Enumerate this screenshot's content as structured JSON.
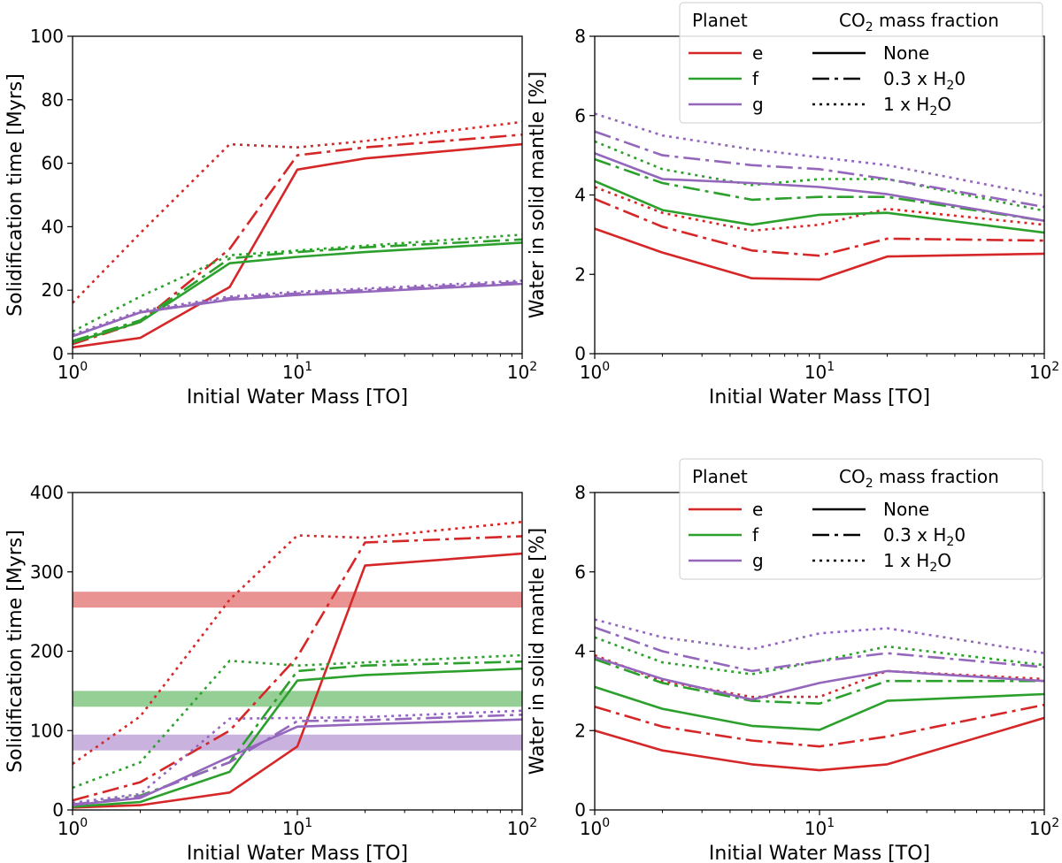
{
  "colors": {
    "e": "#d62728",
    "f": "#2ca02c",
    "g": "#9467bd"
  },
  "legend": {
    "planet_title": "Planet",
    "co2_title_pre": "CO",
    "co2_title_sub": "2",
    "co2_title_post": " mass fraction",
    "planets": [
      "e",
      "f",
      "g"
    ],
    "fractions": [
      {
        "style": "solid",
        "pre": "None",
        "sub": "",
        "post": ""
      },
      {
        "style": "dashdot",
        "pre": "0.3 x H",
        "sub": "2",
        "post": "0"
      },
      {
        "style": "dotted",
        "pre": "1 x H",
        "sub": "2",
        "post": "O"
      }
    ]
  },
  "chart_data": [
    {
      "id": "top-left",
      "type": "line",
      "xscale": "log",
      "xlabel": "Initial Water Mass [TO]",
      "ylabel": "Solidification time [Myrs]",
      "xlim": [
        1,
        100
      ],
      "ylim": [
        0,
        100
      ],
      "yticks": [
        0,
        20,
        40,
        60,
        80,
        100
      ],
      "x": [
        1,
        2,
        5,
        10,
        20,
        100
      ],
      "series": [
        {
          "name": "e none",
          "planet": "e",
          "style": "solid",
          "values": [
            2,
            5,
            21,
            58,
            61.5,
            66
          ]
        },
        {
          "name": "e 0.3xH2O",
          "planet": "e",
          "style": "dashdot",
          "values": [
            3,
            10,
            33,
            62.5,
            65,
            69
          ]
        },
        {
          "name": "e 1xH2O",
          "planet": "e",
          "style": "dotted",
          "values": [
            16,
            38,
            66,
            65,
            67,
            73
          ]
        },
        {
          "name": "f none",
          "planet": "f",
          "style": "solid",
          "values": [
            3.5,
            10,
            28.5,
            30.5,
            32,
            35
          ]
        },
        {
          "name": "f 0.3xH2O",
          "planet": "f",
          "style": "dashdot",
          "values": [
            4,
            10.5,
            30,
            32,
            33.5,
            36
          ]
        },
        {
          "name": "f 1xH2O",
          "planet": "f",
          "style": "dotted",
          "values": [
            7,
            18,
            31,
            32.5,
            34,
            37.5
          ]
        },
        {
          "name": "g none",
          "planet": "g",
          "style": "solid",
          "values": [
            5.5,
            13,
            17,
            18.5,
            19.5,
            22
          ]
        },
        {
          "name": "g 0.3xH2O",
          "planet": "g",
          "style": "dashdot",
          "values": [
            5.5,
            13,
            17.5,
            19,
            20,
            22.5
          ]
        },
        {
          "name": "g 1xH2O",
          "planet": "g",
          "style": "dotted",
          "values": [
            6,
            13.5,
            18,
            19.5,
            20.5,
            23
          ]
        }
      ]
    },
    {
      "id": "top-right",
      "type": "line",
      "xscale": "log",
      "xlabel": "Initial Water Mass [TO]",
      "ylabel": "Water in solid mantle [%]",
      "xlim": [
        1,
        100
      ],
      "ylim": [
        0,
        8
      ],
      "yticks": [
        0,
        2,
        4,
        6,
        8
      ],
      "x": [
        1,
        2,
        5,
        10,
        20,
        100
      ],
      "legend": "top-right",
      "series": [
        {
          "name": "e none",
          "planet": "e",
          "style": "solid",
          "values": [
            3.15,
            2.55,
            1.9,
            1.87,
            2.45,
            2.52
          ]
        },
        {
          "name": "e 0.3xH2O",
          "planet": "e",
          "style": "dashdot",
          "values": [
            3.9,
            3.2,
            2.6,
            2.47,
            2.9,
            2.85
          ]
        },
        {
          "name": "e 1xH2O",
          "planet": "e",
          "style": "dotted",
          "values": [
            4.2,
            3.55,
            3.1,
            3.25,
            3.65,
            3.25
          ]
        },
        {
          "name": "f none",
          "planet": "f",
          "style": "solid",
          "values": [
            4.35,
            3.62,
            3.25,
            3.5,
            3.55,
            3.05
          ]
        },
        {
          "name": "f 0.3xH2O",
          "planet": "f",
          "style": "dashdot",
          "values": [
            4.9,
            4.3,
            3.88,
            3.95,
            3.95,
            3.35
          ]
        },
        {
          "name": "f 1xH2O",
          "planet": "f",
          "style": "dotted",
          "values": [
            5.35,
            4.65,
            4.25,
            4.4,
            4.4,
            3.6
          ]
        },
        {
          "name": "g none",
          "planet": "g",
          "style": "solid",
          "values": [
            5.05,
            4.4,
            4.3,
            4.2,
            4.02,
            3.35
          ]
        },
        {
          "name": "g 0.3xH2O",
          "planet": "g",
          "style": "dashdot",
          "values": [
            5.6,
            5.0,
            4.75,
            4.65,
            4.4,
            3.7
          ]
        },
        {
          "name": "g 1xH2O",
          "planet": "g",
          "style": "dotted",
          "values": [
            6.05,
            5.5,
            5.15,
            4.95,
            4.75,
            3.98
          ]
        }
      ]
    },
    {
      "id": "bottom-left",
      "type": "line",
      "xscale": "log",
      "xlabel": "Initial Water Mass [TO]",
      "ylabel": "Solidification time [Myrs]",
      "xlim": [
        1,
        100
      ],
      "ylim": [
        0,
        400
      ],
      "yticks": [
        0,
        100,
        200,
        300,
        400
      ],
      "x": [
        1,
        2,
        5,
        10,
        20,
        100
      ],
      "bands": [
        {
          "planet": "e",
          "y0": 255,
          "y1": 275
        },
        {
          "planet": "f",
          "y0": 130,
          "y1": 150
        },
        {
          "planet": "g",
          "y0": 75,
          "y1": 95
        }
      ],
      "series": [
        {
          "name": "e none",
          "planet": "e",
          "style": "solid",
          "values": [
            3,
            6,
            22,
            80,
            308,
            323
          ]
        },
        {
          "name": "e 0.3xH2O",
          "planet": "e",
          "style": "dashdot",
          "values": [
            12,
            35,
            100,
            193,
            337,
            345
          ]
        },
        {
          "name": "e 1xH2O",
          "planet": "e",
          "style": "dotted",
          "values": [
            58,
            118,
            265,
            346,
            343,
            363
          ]
        },
        {
          "name": "f none",
          "planet": "f",
          "style": "solid",
          "values": [
            4,
            10,
            48,
            163,
            170,
            178
          ]
        },
        {
          "name": "f 0.3xH2O",
          "planet": "f",
          "style": "dashdot",
          "values": [
            6,
            18,
            60,
            175,
            182,
            187
          ]
        },
        {
          "name": "f 1xH2O",
          "planet": "f",
          "style": "dotted",
          "values": [
            28,
            60,
            188,
            182,
            186,
            195
          ]
        },
        {
          "name": "g none",
          "planet": "g",
          "style": "solid",
          "values": [
            6,
            15,
            67,
            105,
            108,
            114
          ]
        },
        {
          "name": "g 0.3xH2O",
          "planet": "g",
          "style": "dashdot",
          "values": [
            7,
            17,
            60,
            112,
            113,
            120
          ]
        },
        {
          "name": "g 1xH2O",
          "planet": "g",
          "style": "dotted",
          "values": [
            9,
            20,
            115,
            116,
            117,
            125
          ]
        }
      ]
    },
    {
      "id": "bottom-right",
      "type": "line",
      "xscale": "log",
      "xlabel": "Initial Water Mass [TO]",
      "ylabel": "Water in solid mantle [%]",
      "xlim": [
        1,
        100
      ],
      "ylim": [
        0,
        8
      ],
      "yticks": [
        0,
        2,
        4,
        6,
        8
      ],
      "x": [
        1,
        2,
        5,
        10,
        20,
        100
      ],
      "legend": "top-right",
      "series": [
        {
          "name": "e none",
          "planet": "e",
          "style": "solid",
          "values": [
            2.0,
            1.5,
            1.15,
            1.0,
            1.15,
            2.32
          ]
        },
        {
          "name": "e 0.3xH2O",
          "planet": "e",
          "style": "dashdot",
          "values": [
            2.6,
            2.1,
            1.75,
            1.6,
            1.85,
            2.65
          ]
        },
        {
          "name": "e 1xH2O",
          "planet": "e",
          "style": "dotted",
          "values": [
            3.9,
            3.25,
            2.85,
            2.85,
            3.5,
            3.3
          ]
        },
        {
          "name": "f none",
          "planet": "f",
          "style": "solid",
          "values": [
            3.1,
            2.55,
            2.12,
            2.02,
            2.75,
            2.92
          ]
        },
        {
          "name": "f 0.3xH2O",
          "planet": "f",
          "style": "dashdot",
          "values": [
            3.8,
            3.2,
            2.75,
            2.68,
            3.25,
            3.25
          ]
        },
        {
          "name": "f 1xH2O",
          "planet": "f",
          "style": "dotted",
          "values": [
            4.35,
            3.72,
            3.42,
            3.75,
            4.12,
            3.65
          ]
        },
        {
          "name": "g none",
          "planet": "g",
          "style": "solid",
          "values": [
            3.85,
            3.3,
            2.78,
            3.2,
            3.5,
            3.25
          ]
        },
        {
          "name": "g 0.3xH2O",
          "planet": "g",
          "style": "dashdot",
          "values": [
            4.6,
            4.0,
            3.5,
            3.75,
            3.95,
            3.6
          ]
        },
        {
          "name": "g 1xH2O",
          "planet": "g",
          "style": "dotted",
          "values": [
            4.8,
            4.35,
            4.05,
            4.45,
            4.58,
            3.95
          ]
        }
      ]
    }
  ]
}
